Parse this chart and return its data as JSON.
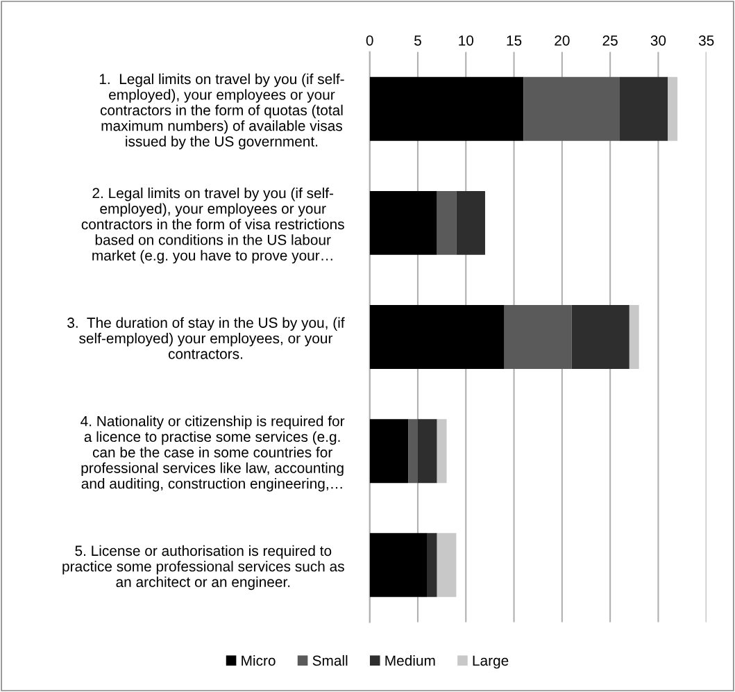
{
  "chart_data": {
    "type": "bar",
    "orientation": "horizontal",
    "stacked": true,
    "categories": [
      "1.  Legal limits on travel by you (if self-\nemployed), your employees or your\ncontractors in the form of quotas (total\nmaximum numbers) of available visas\nissued by the US government.",
      "2. Legal limits on travel by you (if self-\nemployed), your employees or your\ncontractors in the form of visa restrictions\nbased on conditions in the US labour\nmarket (e.g. you have to prove your…",
      "3.  The duration of stay in the US by you, (if\nself-employed) your employees, or your\ncontractors.",
      "4. Nationality or citizenship is required for\na licence to practise some services (e.g.\ncan be the case in some countries for\nprofessional services like law, accounting\nand auditing, construction engineering,…",
      "5. License or authorisation is required to\npractice some professional services such as\nan architect or an engineer."
    ],
    "series": [
      {
        "name": "Micro",
        "color": "#000000",
        "values": [
          16,
          7,
          14,
          4,
          6
        ]
      },
      {
        "name": "Small",
        "color": "#5a5a5a",
        "values": [
          10,
          2,
          7,
          1,
          0
        ]
      },
      {
        "name": "Medium",
        "color": "#2e2e2e",
        "values": [
          5,
          3,
          6,
          2,
          1
        ]
      },
      {
        "name": "Large",
        "color": "#c8c8c8",
        "values": [
          1,
          0,
          1,
          1,
          2
        ]
      }
    ],
    "xlim": [
      0,
      35
    ],
    "xticks": [
      0,
      5,
      10,
      15,
      20,
      25,
      30,
      35
    ],
    "grid": "x",
    "legend": "bottom"
  }
}
